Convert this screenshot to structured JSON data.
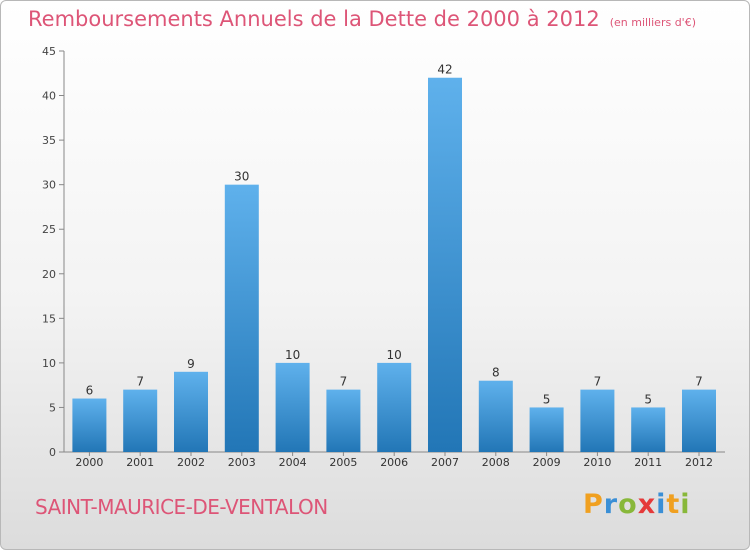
{
  "chart_data": {
    "type": "bar",
    "title": "Remboursements Annuels de la Dette de 2000 à 2012",
    "subtitle": "(en milliers d'€)",
    "categories": [
      "2000",
      "2001",
      "2002",
      "2003",
      "2004",
      "2005",
      "2006",
      "2007",
      "2008",
      "2009",
      "2010",
      "2011",
      "2012"
    ],
    "values": [
      6,
      7,
      9,
      30,
      10,
      7,
      10,
      42,
      8,
      5,
      7,
      5,
      7
    ],
    "ylim": [
      0,
      45
    ],
    "yticks": [
      0,
      5,
      10,
      15,
      20,
      25,
      30,
      35,
      40,
      45
    ],
    "grid": false,
    "bar_color": "#3d9ad9",
    "xlabel": "",
    "ylabel": ""
  },
  "location": "SAINT-MAURICE-DE-VENTALON",
  "logo": {
    "text": "Proxiti",
    "letters": [
      "P",
      "r",
      "o",
      "x",
      "i",
      "t",
      "i"
    ],
    "colors": [
      "#f0a020",
      "#3a8fd6",
      "#88b83a",
      "#e53a3a",
      "#3a8fd6",
      "#f0a020",
      "#88b83a"
    ]
  },
  "colors": {
    "accent": "#dd5577"
  }
}
